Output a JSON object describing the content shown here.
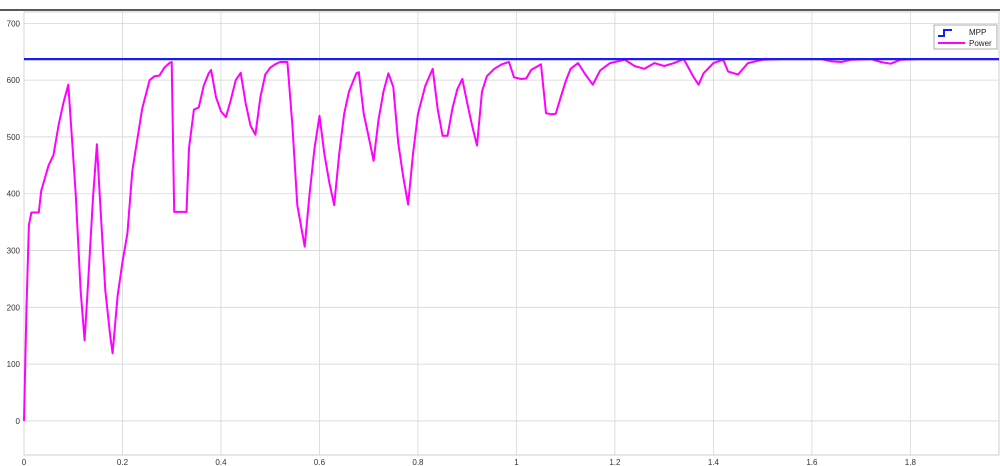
{
  "chart_data": {
    "type": "line",
    "title": "",
    "xlabel": "",
    "ylabel": "",
    "xlim": [
      0,
      1.98
    ],
    "ylim": [
      -60,
      720
    ],
    "grid": true,
    "x_ticks": [
      0,
      0.2,
      0.4,
      0.6,
      0.8,
      1,
      1.2,
      1.4,
      1.6,
      1.8
    ],
    "x_tick_labels": [
      "0",
      "0.2",
      "0.4",
      "0.6",
      "0.8",
      "1",
      "1.2",
      "1.4",
      "1.6",
      "1.8"
    ],
    "y_ticks": [
      0,
      100,
      200,
      300,
      400,
      500,
      600,
      700
    ],
    "y_tick_labels": [
      "0",
      "100",
      "200",
      "300",
      "400",
      "500",
      "600",
      "700"
    ],
    "legend_position": "top-right",
    "series": [
      {
        "name": "MPP",
        "color": "#1a1aff",
        "points": [
          [
            0,
            637
          ],
          [
            1.98,
            637
          ]
        ]
      },
      {
        "name": "Power",
        "color": "#ff00ff",
        "points": [
          [
            0,
            0
          ],
          [
            0.005,
            200
          ],
          [
            0.01,
            345
          ],
          [
            0.015,
            367
          ],
          [
            0.03,
            367
          ],
          [
            0.035,
            405
          ],
          [
            0.05,
            450
          ],
          [
            0.06,
            468
          ],
          [
            0.07,
            520
          ],
          [
            0.08,
            560
          ],
          [
            0.09,
            592
          ],
          [
            0.105,
            400
          ],
          [
            0.115,
            230
          ],
          [
            0.123,
            142
          ],
          [
            0.13,
            240
          ],
          [
            0.14,
            390
          ],
          [
            0.148,
            487
          ],
          [
            0.155,
            380
          ],
          [
            0.165,
            230
          ],
          [
            0.175,
            150
          ],
          [
            0.18,
            119
          ],
          [
            0.19,
            220
          ],
          [
            0.2,
            280
          ],
          [
            0.21,
            330
          ],
          [
            0.22,
            440
          ],
          [
            0.24,
            550
          ],
          [
            0.255,
            600
          ],
          [
            0.265,
            607
          ],
          [
            0.275,
            608
          ],
          [
            0.285,
            622
          ],
          [
            0.295,
            630
          ],
          [
            0.3,
            632
          ],
          [
            0.305,
            368
          ],
          [
            0.33,
            368
          ],
          [
            0.335,
            480
          ],
          [
            0.345,
            548
          ],
          [
            0.355,
            552
          ],
          [
            0.365,
            590
          ],
          [
            0.375,
            612
          ],
          [
            0.38,
            618
          ],
          [
            0.39,
            570
          ],
          [
            0.4,
            545
          ],
          [
            0.41,
            535
          ],
          [
            0.42,
            565
          ],
          [
            0.43,
            600
          ],
          [
            0.44,
            613
          ],
          [
            0.45,
            560
          ],
          [
            0.46,
            520
          ],
          [
            0.47,
            504
          ],
          [
            0.48,
            570
          ],
          [
            0.49,
            610
          ],
          [
            0.5,
            622
          ],
          [
            0.51,
            628
          ],
          [
            0.52,
            632
          ],
          [
            0.535,
            632
          ],
          [
            0.545,
            520
          ],
          [
            0.555,
            380
          ],
          [
            0.57,
            307
          ],
          [
            0.58,
            400
          ],
          [
            0.59,
            480
          ],
          [
            0.6,
            537
          ],
          [
            0.61,
            470
          ],
          [
            0.62,
            420
          ],
          [
            0.63,
            380
          ],
          [
            0.64,
            470
          ],
          [
            0.65,
            540
          ],
          [
            0.66,
            580
          ],
          [
            0.675,
            612
          ],
          [
            0.68,
            614
          ],
          [
            0.69,
            540
          ],
          [
            0.7,
            500
          ],
          [
            0.71,
            458
          ],
          [
            0.72,
            530
          ],
          [
            0.73,
            580
          ],
          [
            0.74,
            612
          ],
          [
            0.75,
            588
          ],
          [
            0.76,
            490
          ],
          [
            0.77,
            430
          ],
          [
            0.78,
            381
          ],
          [
            0.79,
            470
          ],
          [
            0.8,
            540
          ],
          [
            0.815,
            590
          ],
          [
            0.825,
            610
          ],
          [
            0.83,
            620
          ],
          [
            0.84,
            550
          ],
          [
            0.85,
            502
          ],
          [
            0.86,
            502
          ],
          [
            0.87,
            550
          ],
          [
            0.88,
            584
          ],
          [
            0.89,
            602
          ],
          [
            0.9,
            560
          ],
          [
            0.91,
            520
          ],
          [
            0.92,
            485
          ],
          [
            0.93,
            580
          ],
          [
            0.94,
            607
          ],
          [
            0.955,
            620
          ],
          [
            0.97,
            628
          ],
          [
            0.985,
            632
          ],
          [
            0.995,
            605
          ],
          [
            1.01,
            602
          ],
          [
            1.02,
            603
          ],
          [
            1.03,
            618
          ],
          [
            1.05,
            628
          ],
          [
            1.06,
            542
          ],
          [
            1.07,
            540
          ],
          [
            1.08,
            541
          ],
          [
            1.09,
            570
          ],
          [
            1.1,
            598
          ],
          [
            1.11,
            620
          ],
          [
            1.125,
            630
          ],
          [
            1.14,
            610
          ],
          [
            1.155,
            592
          ],
          [
            1.17,
            617
          ],
          [
            1.19,
            630
          ],
          [
            1.22,
            636
          ],
          [
            1.24,
            625
          ],
          [
            1.26,
            620
          ],
          [
            1.28,
            630
          ],
          [
            1.3,
            625
          ],
          [
            1.32,
            630
          ],
          [
            1.34,
            637
          ],
          [
            1.36,
            605
          ],
          [
            1.37,
            592
          ],
          [
            1.38,
            612
          ],
          [
            1.4,
            630
          ],
          [
            1.42,
            636
          ],
          [
            1.43,
            615
          ],
          [
            1.45,
            610
          ],
          [
            1.47,
            630
          ],
          [
            1.5,
            636
          ],
          [
            1.54,
            637
          ],
          [
            1.62,
            637
          ],
          [
            1.64,
            633
          ],
          [
            1.66,
            632
          ],
          [
            1.68,
            636
          ],
          [
            1.72,
            637
          ],
          [
            1.74,
            632
          ],
          [
            1.76,
            629
          ],
          [
            1.78,
            636
          ],
          [
            1.82,
            637
          ],
          [
            1.98,
            637
          ]
        ]
      }
    ]
  }
}
